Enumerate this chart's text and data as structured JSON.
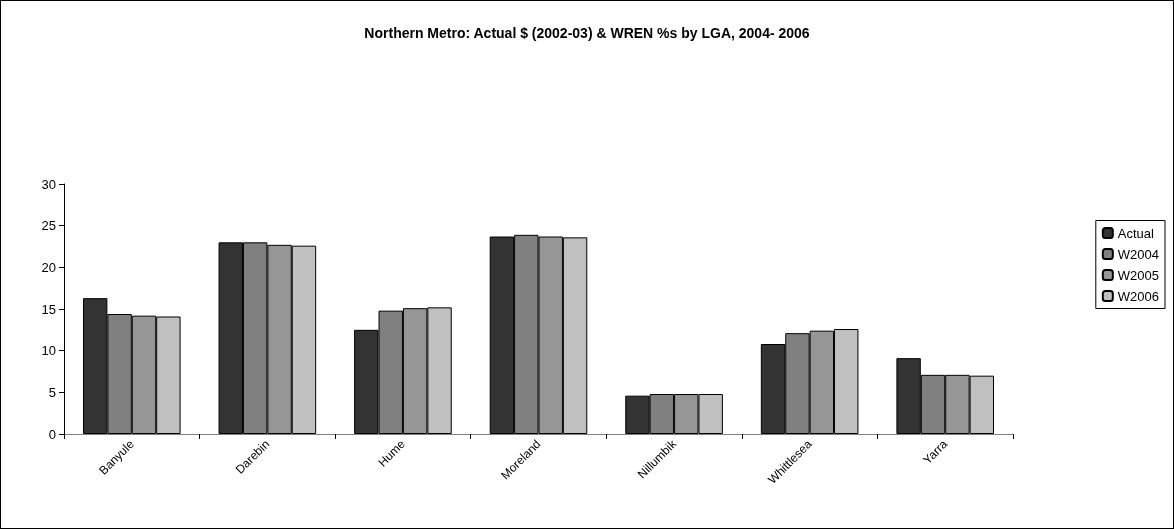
{
  "chart_data": {
    "type": "bar",
    "title": "Northern Metro: Actual $ (2002-03) & WREN %s by LGA, 2004- 2006",
    "categories": [
      "Banyule",
      "Darebin",
      "Hume",
      "Moreland",
      "Nillumbik",
      "Whittlesea",
      "Yarra"
    ],
    "series": [
      {
        "name": "Actual",
        "color": "#333333",
        "values": [
          16.3,
          23.0,
          12.5,
          23.7,
          4.6,
          10.8,
          9.1
        ]
      },
      {
        "name": "W2004",
        "color": "#808080",
        "values": [
          14.4,
          23.0,
          14.8,
          23.9,
          4.8,
          12.1,
          7.1
        ]
      },
      {
        "name": "W2005",
        "color": "#969696",
        "values": [
          14.2,
          22.7,
          15.1,
          23.7,
          4.8,
          12.4,
          7.1
        ]
      },
      {
        "name": "W2006",
        "color": "#c0c0c0",
        "values": [
          14.1,
          22.6,
          15.2,
          23.6,
          4.8,
          12.6,
          7.0
        ]
      }
    ],
    "ylim": [
      0,
      30
    ],
    "yticks": [
      0,
      5,
      10,
      15,
      20,
      25,
      30
    ],
    "grid": false,
    "legend": "right"
  }
}
